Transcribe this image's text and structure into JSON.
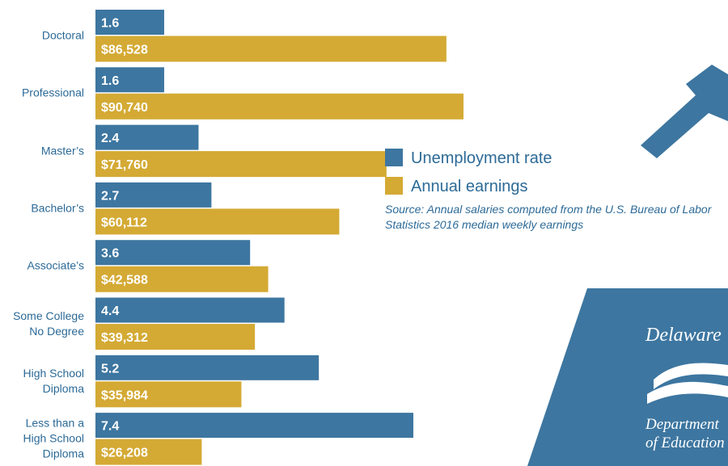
{
  "chart_data": {
    "type": "bar",
    "orientation": "horizontal",
    "categories": [
      "Doctoral",
      "Professional",
      "Master’s",
      "Bachelor’s",
      "Associate’s",
      "Some College No Degree",
      "High School Diploma",
      "Less than a High School Diploma"
    ],
    "series": [
      {
        "name": "Unemployment rate",
        "color": "#3d76a0",
        "values": [
          1.6,
          1.6,
          2.4,
          2.7,
          3.6,
          4.4,
          5.2,
          7.4
        ]
      },
      {
        "name": "Annual earnings",
        "color": "#d4aa34",
        "values": [
          86528,
          90740,
          71760,
          60112,
          42588,
          39312,
          35984,
          26208
        ],
        "value_labels": [
          "$86,528",
          "$90,740",
          "$71,760",
          "$60,112",
          "$42,588",
          "$39,312",
          "$35,984",
          "$26,208"
        ]
      }
    ],
    "note": "Source: Annual salaries computed from the U.S. Bureau of Labor Statistics 2016 median weekly earnings"
  },
  "logo": {
    "name": "Delaware",
    "line1": "Department",
    "line2": "of Education"
  }
}
